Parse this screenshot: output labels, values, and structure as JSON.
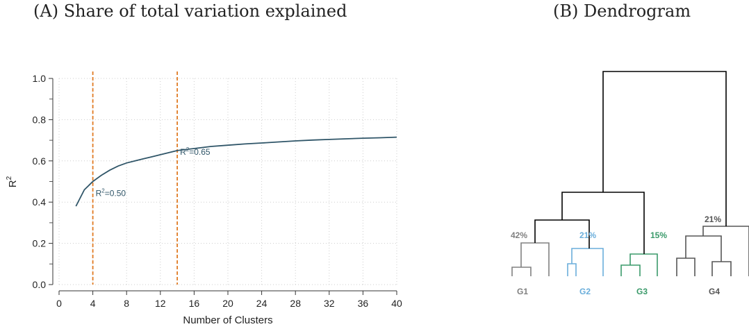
{
  "panels": {
    "a_title": "(A) Share of total variation explained",
    "b_title": "(B) Dendrogram"
  },
  "chart_data": [
    {
      "type": "line",
      "title": "(A) Share of total variation explained",
      "xlabel": "Number of Clusters",
      "ylabel": "R",
      "ylabel_sup": "2",
      "xlim": [
        0,
        40
      ],
      "ylim": [
        0,
        1
      ],
      "xticks": [
        "0",
        "4",
        "8",
        "12",
        "16",
        "20",
        "24",
        "28",
        "32",
        "36",
        "40"
      ],
      "yticks": [
        "0.0",
        "0.2",
        "0.4",
        "0.6",
        "0.8",
        "1.0"
      ],
      "grid": true,
      "colors": {
        "line": "#2f5568",
        "vline": "#e07b24",
        "grid": "#cccccc"
      },
      "x": [
        2,
        3,
        4,
        5,
        6,
        7,
        8,
        9,
        10,
        11,
        12,
        13,
        14,
        16,
        18,
        20,
        22,
        24,
        26,
        28,
        30,
        32,
        34,
        36,
        38,
        40
      ],
      "y": [
        0.38,
        0.46,
        0.5,
        0.53,
        0.555,
        0.575,
        0.59,
        0.6,
        0.61,
        0.62,
        0.63,
        0.64,
        0.65,
        0.66,
        0.67,
        0.676,
        0.682,
        0.687,
        0.692,
        0.697,
        0.701,
        0.704,
        0.707,
        0.71,
        0.712,
        0.715
      ],
      "vlines": [
        4,
        14
      ],
      "annotations": [
        {
          "x": 4,
          "y": 0.5,
          "text_pre": "R",
          "sup": "2",
          "text_post": "=0.50",
          "color": "#2f5568"
        },
        {
          "x": 14,
          "y": 0.65,
          "text_pre": "R",
          "sup": "2",
          "text_post": "=0.65",
          "color": "#2f5568"
        }
      ]
    },
    {
      "type": "dendrogram",
      "title": "(B) Dendrogram",
      "groups": [
        {
          "label": "G1",
          "share": "42%",
          "color": "#808080"
        },
        {
          "label": "G2",
          "share": "21%",
          "color": "#6aaedb"
        },
        {
          "label": "G3",
          "share": "15%",
          "color": "#3a9a6a"
        },
        {
          "label": "G4",
          "share": "21%",
          "color": "#555555"
        }
      ],
      "trunk_color": "#000000"
    }
  ]
}
